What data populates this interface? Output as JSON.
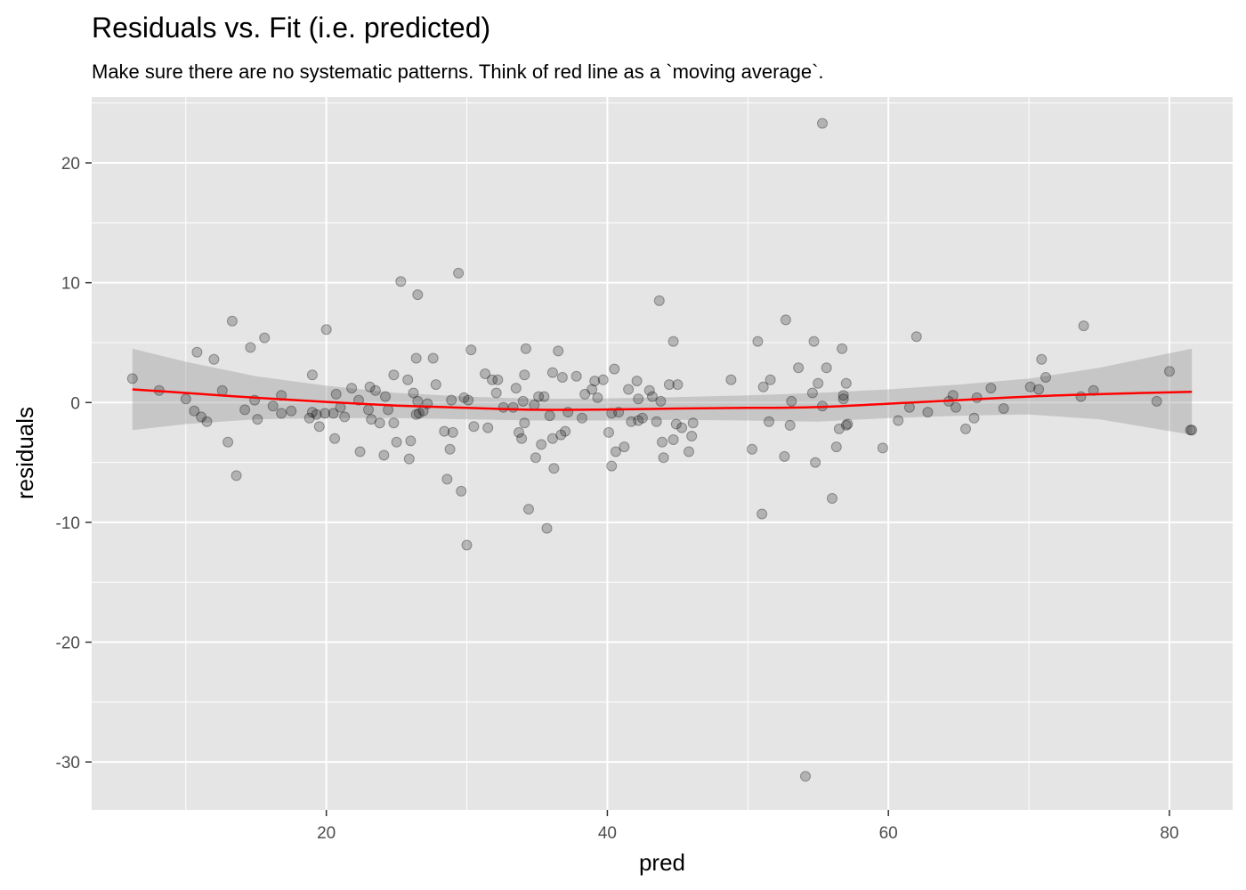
{
  "chart_data": {
    "type": "scatter",
    "title": "Residuals vs. Fit (i.e. predicted)",
    "subtitle": "Make sure there are no systematic patterns. Think of red line as a `moving average`.",
    "xlabel": "pred",
    "ylabel": "residuals",
    "xlim": [
      3.3,
      84.5
    ],
    "ylim": [
      -34,
      25.5
    ],
    "x_ticks": [
      20,
      40,
      60,
      80
    ],
    "y_ticks": [
      20,
      10,
      0,
      -10,
      -20,
      -30
    ],
    "x_tick_labels": [
      "20",
      "40",
      "60",
      "80"
    ],
    "y_tick_labels": [
      "20",
      "10",
      "0",
      "-10",
      "-20",
      "-30"
    ],
    "grid": true,
    "panel_background": "#e5e5e5",
    "point_color": "#000000",
    "point_opacity": 0.22,
    "smooth_color": "#ff0000",
    "ribbon_color": "#999999",
    "ribbon_opacity": 0.4,
    "points": [
      [
        6.2,
        2.0
      ],
      [
        8.1,
        1.0
      ],
      [
        10.0,
        0.3
      ],
      [
        10.6,
        -0.7
      ],
      [
        10.8,
        4.2
      ],
      [
        11.1,
        -1.2
      ],
      [
        11.5,
        -1.6
      ],
      [
        12.0,
        3.6
      ],
      [
        12.6,
        1.0
      ],
      [
        13.0,
        -3.3
      ],
      [
        13.3,
        6.8
      ],
      [
        13.6,
        -6.1
      ],
      [
        14.2,
        -0.6
      ],
      [
        14.6,
        4.6
      ],
      [
        14.9,
        0.2
      ],
      [
        15.1,
        -1.4
      ],
      [
        15.6,
        5.4
      ],
      [
        16.2,
        -0.3
      ],
      [
        16.8,
        0.6
      ],
      [
        16.8,
        -0.9
      ],
      [
        17.5,
        -0.7
      ],
      [
        18.8,
        -1.3
      ],
      [
        19.0,
        -0.8
      ],
      [
        19.0,
        2.3
      ],
      [
        19.3,
        -1.0
      ],
      [
        19.5,
        -2.0
      ],
      [
        19.9,
        -0.9
      ],
      [
        20.0,
        6.1
      ],
      [
        20.5,
        -0.9
      ],
      [
        20.6,
        -3.0
      ],
      [
        20.7,
        0.7
      ],
      [
        21.0,
        -0.4
      ],
      [
        21.3,
        -1.2
      ],
      [
        21.8,
        1.2
      ],
      [
        22.3,
        0.2
      ],
      [
        22.4,
        -4.1
      ],
      [
        23.0,
        -0.6
      ],
      [
        23.1,
        1.3
      ],
      [
        23.2,
        -1.4
      ],
      [
        23.5,
        1.0
      ],
      [
        23.8,
        -1.7
      ],
      [
        24.1,
        -4.4
      ],
      [
        24.2,
        0.5
      ],
      [
        24.4,
        -0.6
      ],
      [
        24.8,
        -1.7
      ],
      [
        24.8,
        2.3
      ],
      [
        25.0,
        -3.3
      ],
      [
        25.3,
        10.1
      ],
      [
        25.8,
        1.9
      ],
      [
        25.9,
        -4.7
      ],
      [
        26.0,
        -3.2
      ],
      [
        26.2,
        0.8
      ],
      [
        26.4,
        3.7
      ],
      [
        26.4,
        -1.0
      ],
      [
        26.5,
        9.0
      ],
      [
        26.5,
        0.1
      ],
      [
        26.6,
        -0.9
      ],
      [
        26.9,
        -0.7
      ],
      [
        27.2,
        -0.1
      ],
      [
        27.6,
        3.7
      ],
      [
        27.8,
        1.5
      ],
      [
        28.4,
        -2.4
      ],
      [
        28.6,
        -6.4
      ],
      [
        28.8,
        -3.9
      ],
      [
        28.9,
        0.2
      ],
      [
        29.0,
        -2.5
      ],
      [
        29.4,
        10.8
      ],
      [
        29.6,
        -7.4
      ],
      [
        29.8,
        0.4
      ],
      [
        30.0,
        -11.9
      ],
      [
        30.1,
        0.2
      ],
      [
        30.3,
        4.4
      ],
      [
        30.5,
        -2.0
      ],
      [
        31.3,
        2.4
      ],
      [
        31.5,
        -2.1
      ],
      [
        31.8,
        1.9
      ],
      [
        32.1,
        0.8
      ],
      [
        32.2,
        1.9
      ],
      [
        32.6,
        -0.4
      ],
      [
        33.3,
        -0.4
      ],
      [
        33.5,
        1.2
      ],
      [
        33.7,
        -2.5
      ],
      [
        33.9,
        -3.0
      ],
      [
        34.0,
        0.1
      ],
      [
        34.1,
        -1.7
      ],
      [
        34.1,
        2.3
      ],
      [
        34.2,
        4.5
      ],
      [
        34.4,
        -8.9
      ],
      [
        34.8,
        -0.2
      ],
      [
        34.9,
        -4.6
      ],
      [
        35.1,
        0.5
      ],
      [
        35.3,
        -3.5
      ],
      [
        35.5,
        0.5
      ],
      [
        35.7,
        -10.5
      ],
      [
        35.9,
        -1.1
      ],
      [
        36.1,
        2.5
      ],
      [
        36.1,
        -3.0
      ],
      [
        36.2,
        -5.5
      ],
      [
        36.5,
        4.3
      ],
      [
        36.7,
        -2.7
      ],
      [
        36.8,
        2.1
      ],
      [
        37.0,
        -2.4
      ],
      [
        37.2,
        -0.8
      ],
      [
        37.8,
        2.2
      ],
      [
        38.2,
        -1.3
      ],
      [
        38.4,
        0.7
      ],
      [
        38.9,
        1.1
      ],
      [
        39.1,
        1.8
      ],
      [
        39.3,
        0.4
      ],
      [
        39.7,
        1.9
      ],
      [
        40.1,
        -2.5
      ],
      [
        40.3,
        -0.9
      ],
      [
        40.3,
        -5.3
      ],
      [
        40.5,
        2.8
      ],
      [
        40.6,
        -4.1
      ],
      [
        40.8,
        -0.8
      ],
      [
        41.2,
        -3.7
      ],
      [
        41.5,
        1.1
      ],
      [
        41.7,
        -1.6
      ],
      [
        42.1,
        1.8
      ],
      [
        42.2,
        0.3
      ],
      [
        42.2,
        -1.5
      ],
      [
        42.5,
        -1.3
      ],
      [
        43.0,
        1.0
      ],
      [
        43.2,
        0.5
      ],
      [
        43.5,
        -1.6
      ],
      [
        43.7,
        8.5
      ],
      [
        43.8,
        0.1
      ],
      [
        43.9,
        -3.3
      ],
      [
        44.0,
        -4.6
      ],
      [
        44.4,
        1.5
      ],
      [
        44.7,
        5.1
      ],
      [
        44.7,
        -3.1
      ],
      [
        44.9,
        -1.8
      ],
      [
        45.0,
        1.5
      ],
      [
        45.3,
        -2.1
      ],
      [
        45.8,
        -4.1
      ],
      [
        46.0,
        -2.8
      ],
      [
        46.1,
        -1.7
      ],
      [
        48.8,
        1.9
      ],
      [
        50.3,
        -3.9
      ],
      [
        50.7,
        5.1
      ],
      [
        51.0,
        -9.3
      ],
      [
        51.1,
        1.3
      ],
      [
        51.5,
        -1.6
      ],
      [
        51.6,
        1.9
      ],
      [
        52.6,
        -4.5
      ],
      [
        52.7,
        6.9
      ],
      [
        53.0,
        -1.9
      ],
      [
        53.1,
        0.1
      ],
      [
        53.6,
        2.9
      ],
      [
        54.6,
        0.8
      ],
      [
        54.7,
        5.1
      ],
      [
        54.8,
        -5.0
      ],
      [
        55.3,
        -0.3
      ],
      [
        56.5,
        -2.2
      ],
      [
        56.7,
        4.5
      ],
      [
        56.8,
        0.3
      ],
      [
        57.0,
        1.6
      ],
      [
        57.1,
        -1.8
      ],
      [
        54.1,
        -31.2
      ],
      [
        55.3,
        23.3
      ],
      [
        55.0,
        1.6
      ],
      [
        55.6,
        2.9
      ],
      [
        56.0,
        -8.0
      ],
      [
        56.3,
        -3.7
      ],
      [
        56.8,
        0.6
      ],
      [
        57.0,
        -1.9
      ],
      [
        59.6,
        -3.8
      ],
      [
        60.7,
        -1.5
      ],
      [
        61.5,
        -0.4
      ],
      [
        62.0,
        5.5
      ],
      [
        62.8,
        -0.8
      ],
      [
        64.3,
        0.1
      ],
      [
        64.6,
        0.6
      ],
      [
        64.8,
        -0.4
      ],
      [
        65.5,
        -2.2
      ],
      [
        66.1,
        -1.3
      ],
      [
        66.3,
        0.4
      ],
      [
        67.3,
        1.2
      ],
      [
        68.2,
        -0.5
      ],
      [
        70.1,
        1.3
      ],
      [
        70.7,
        1.1
      ],
      [
        70.9,
        3.6
      ],
      [
        71.2,
        2.1
      ],
      [
        73.7,
        0.5
      ],
      [
        73.9,
        6.4
      ],
      [
        74.6,
        1.0
      ],
      [
        79.1,
        0.1
      ],
      [
        80.0,
        2.6
      ],
      [
        81.5,
        -2.3
      ],
      [
        81.6,
        -2.3
      ]
    ],
    "smooth": [
      [
        6.2,
        1.1
      ],
      [
        10,
        0.8
      ],
      [
        15,
        0.4
      ],
      [
        20,
        0.05
      ],
      [
        25,
        -0.25
      ],
      [
        30,
        -0.45
      ],
      [
        35,
        -0.6
      ],
      [
        40,
        -0.58
      ],
      [
        45,
        -0.5
      ],
      [
        50,
        -0.45
      ],
      [
        55,
        -0.38
      ],
      [
        60,
        -0.1
      ],
      [
        65,
        0.2
      ],
      [
        70,
        0.5
      ],
      [
        75,
        0.7
      ],
      [
        81.6,
        0.9
      ]
    ],
    "ribbon_upper": [
      [
        6.2,
        4.5
      ],
      [
        10,
        3.4
      ],
      [
        15,
        2.2
      ],
      [
        20,
        1.4
      ],
      [
        25,
        0.8
      ],
      [
        30,
        0.5
      ],
      [
        35,
        0.3
      ],
      [
        40,
        0.35
      ],
      [
        45,
        0.45
      ],
      [
        50,
        0.6
      ],
      [
        55,
        0.8
      ],
      [
        60,
        1.1
      ],
      [
        65,
        1.5
      ],
      [
        70,
        2.0
      ],
      [
        75,
        2.9
      ],
      [
        81.6,
        4.5
      ]
    ],
    "ribbon_lower": [
      [
        6.2,
        -2.3
      ],
      [
        10,
        -1.8
      ],
      [
        15,
        -1.4
      ],
      [
        20,
        -1.3
      ],
      [
        25,
        -1.3
      ],
      [
        30,
        -1.4
      ],
      [
        35,
        -1.5
      ],
      [
        40,
        -1.5
      ],
      [
        45,
        -1.45
      ],
      [
        50,
        -1.5
      ],
      [
        55,
        -1.6
      ],
      [
        60,
        -1.3
      ],
      [
        65,
        -1.1
      ],
      [
        70,
        -1.0
      ],
      [
        75,
        -1.4
      ],
      [
        81.6,
        -2.7
      ]
    ]
  }
}
